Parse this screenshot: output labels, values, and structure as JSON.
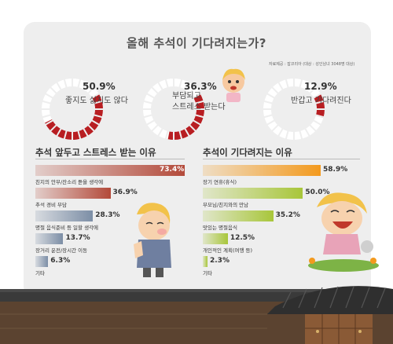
{
  "title": "올해 추석이 기다려지는가?",
  "source": "자료제공 : 잡코리아 (대상 : 성인남녀 3048명 대상)",
  "colors": {
    "ring_red": "#b81e22",
    "stress_bar": "#b34a3a",
    "stress_bar_small": "#7c8ea6",
    "wait_bar": "#f39a1e",
    "wait_bar_small": "#a8c63a"
  },
  "chart_data": [
    {
      "type": "pie",
      "categories": [
        "좋지도 싫지도 않다",
        "부담되고 스트레스 받는다",
        "반갑고 기다려진다"
      ],
      "values": [
        50.9,
        36.3,
        12.9
      ],
      "value_labels": [
        "50.9%",
        "36.3%",
        "12.9%"
      ],
      "label_lines": [
        [
          "좋지도 싫지도 않다"
        ],
        [
          "부담되고",
          "스트레스 받는다"
        ],
        [
          "반갑고 기다려진다"
        ]
      ]
    },
    {
      "type": "bar",
      "title": "추석 앞두고 스트레스 받는 이유",
      "categories": [
        "친지의 안부/잔소리 듣을 생각에",
        "추석 경비 부담",
        "명절 음식준비 등 일할 생각에",
        "장거리 운전/장시간 이동",
        "기타"
      ],
      "values": [
        73.4,
        36.9,
        28.3,
        13.7,
        6.3
      ],
      "value_labels": [
        "73.4%",
        "36.9%",
        "28.3%",
        "13.7%",
        "6.3%"
      ]
    },
    {
      "type": "bar",
      "title": "추석이 기다려지는 이유",
      "categories": [
        "장기 연휴(휴식)",
        "부모님/친지와의 만남",
        "맛있는 명절음식",
        "개인적인 계획(여행 등)",
        "기타"
      ],
      "values": [
        58.9,
        50.0,
        35.2,
        12.5,
        2.3
      ],
      "value_labels": [
        "58.9%",
        "50.0%",
        "35.2%",
        "12.5%",
        "2.3%"
      ]
    }
  ]
}
